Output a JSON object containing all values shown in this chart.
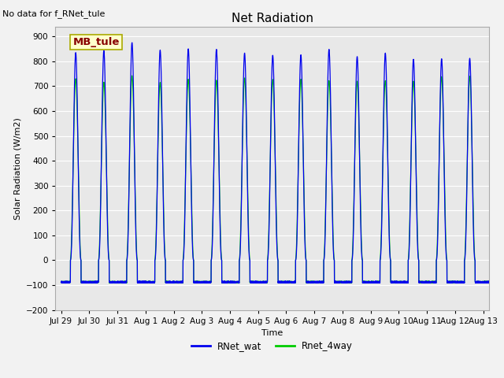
{
  "title": "Net Radiation",
  "xlabel": "Time",
  "ylabel": "Solar Radiation (W/m2)",
  "ylim": [
    -200,
    940
  ],
  "yticks": [
    -200,
    -100,
    0,
    100,
    200,
    300,
    400,
    500,
    600,
    700,
    800,
    900
  ],
  "annotation_text": "No data for f_RNet_tule",
  "legend_box_text": "MB_tule",
  "legend_box_bg": "#FFFFCC",
  "legend_box_edge": "#AAAA00",
  "legend_box_text_color": "#880000",
  "line1_color": "#0000EE",
  "line2_color": "#00CC00",
  "line1_label": "RNet_wat",
  "line2_label": "Rnet_4way",
  "plot_bg_color": "#E8E8E8",
  "fig_bg_color": "#F2F2F2",
  "n_days": 16,
  "peak_values_blue": [
    835,
    843,
    875,
    845,
    850,
    848,
    833,
    824,
    826,
    848,
    819,
    833,
    808,
    810,
    812,
    815
  ],
  "peak_values_green": [
    730,
    716,
    742,
    715,
    728,
    724,
    733,
    727,
    728,
    722,
    720,
    722,
    720,
    738,
    740,
    735
  ],
  "night_val": -88,
  "x_tick_labels": [
    "Jul 29",
    "Jul 30",
    "Jul 31",
    "Aug 1",
    "Aug 2",
    "Aug 3",
    "Aug 4",
    "Aug 5",
    "Aug 6",
    "Aug 7",
    "Aug 8",
    "Aug 9",
    "Aug 10",
    "Aug 11",
    "Aug 12",
    "Aug 13"
  ],
  "title_fontsize": 11,
  "axis_label_fontsize": 8,
  "tick_fontsize": 7.5,
  "annotation_fontsize": 8,
  "legend_fontsize": 8.5
}
